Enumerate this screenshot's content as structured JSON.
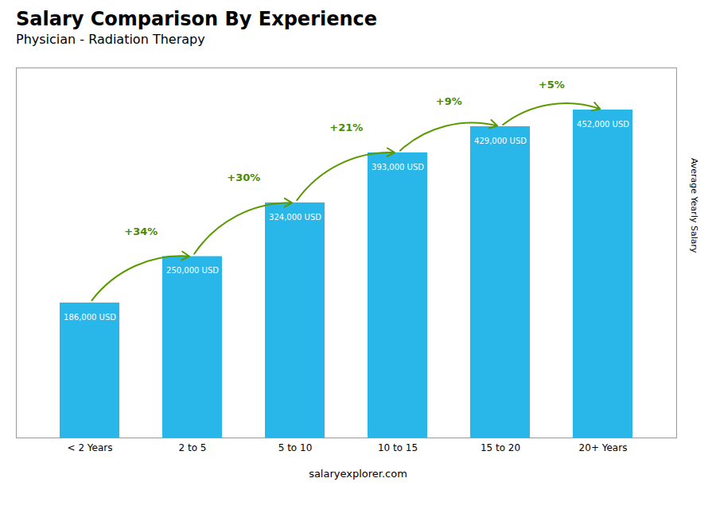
{
  "chart_data": {
    "type": "bar",
    "title": "Salary Comparison By Experience",
    "subtitle": "Physician - Radiation Therapy",
    "ylabel": "Average Yearly Salary",
    "caption": "salaryexplorer.com",
    "categories": [
      "< 2 Years",
      "2 to 5",
      "5 to 10",
      "10 to 15",
      "15 to 20",
      "20+ Years"
    ],
    "values": [
      186000,
      250000,
      324000,
      393000,
      429000,
      452000
    ],
    "value_labels": [
      "186,000 USD",
      "250,000 USD",
      "324,000 USD",
      "393,000 USD",
      "429,000 USD",
      "452,000 USD"
    ],
    "data_labels": true,
    "annotations": [
      "+34%",
      "+30%",
      "+21%",
      "+9%",
      "+5%"
    ],
    "color": "#29B6E8",
    "ylim": [
      0,
      510000
    ],
    "tick_labels": "x",
    "grid": false
  }
}
